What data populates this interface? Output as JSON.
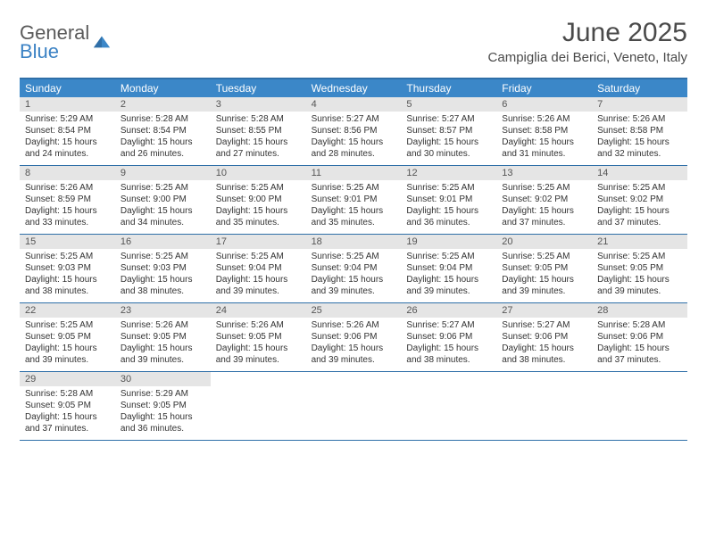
{
  "logo": {
    "general": "General",
    "blue": "Blue"
  },
  "title": "June 2025",
  "location": "Campiglia dei Berici, Veneto, Italy",
  "colors": {
    "header_bar": "#3b87c8",
    "border": "#2f6fa8",
    "date_bg": "#e5e5e5",
    "logo_gray": "#5a5a5a",
    "logo_blue": "#3b82c4"
  },
  "day_names": [
    "Sunday",
    "Monday",
    "Tuesday",
    "Wednesday",
    "Thursday",
    "Friday",
    "Saturday"
  ],
  "weeks": [
    [
      {
        "d": "1",
        "sr": "Sunrise: 5:29 AM",
        "ss": "Sunset: 8:54 PM",
        "dl1": "Daylight: 15 hours",
        "dl2": "and 24 minutes."
      },
      {
        "d": "2",
        "sr": "Sunrise: 5:28 AM",
        "ss": "Sunset: 8:54 PM",
        "dl1": "Daylight: 15 hours",
        "dl2": "and 26 minutes."
      },
      {
        "d": "3",
        "sr": "Sunrise: 5:28 AM",
        "ss": "Sunset: 8:55 PM",
        "dl1": "Daylight: 15 hours",
        "dl2": "and 27 minutes."
      },
      {
        "d": "4",
        "sr": "Sunrise: 5:27 AM",
        "ss": "Sunset: 8:56 PM",
        "dl1": "Daylight: 15 hours",
        "dl2": "and 28 minutes."
      },
      {
        "d": "5",
        "sr": "Sunrise: 5:27 AM",
        "ss": "Sunset: 8:57 PM",
        "dl1": "Daylight: 15 hours",
        "dl2": "and 30 minutes."
      },
      {
        "d": "6",
        "sr": "Sunrise: 5:26 AM",
        "ss": "Sunset: 8:58 PM",
        "dl1": "Daylight: 15 hours",
        "dl2": "and 31 minutes."
      },
      {
        "d": "7",
        "sr": "Sunrise: 5:26 AM",
        "ss": "Sunset: 8:58 PM",
        "dl1": "Daylight: 15 hours",
        "dl2": "and 32 minutes."
      }
    ],
    [
      {
        "d": "8",
        "sr": "Sunrise: 5:26 AM",
        "ss": "Sunset: 8:59 PM",
        "dl1": "Daylight: 15 hours",
        "dl2": "and 33 minutes."
      },
      {
        "d": "9",
        "sr": "Sunrise: 5:25 AM",
        "ss": "Sunset: 9:00 PM",
        "dl1": "Daylight: 15 hours",
        "dl2": "and 34 minutes."
      },
      {
        "d": "10",
        "sr": "Sunrise: 5:25 AM",
        "ss": "Sunset: 9:00 PM",
        "dl1": "Daylight: 15 hours",
        "dl2": "and 35 minutes."
      },
      {
        "d": "11",
        "sr": "Sunrise: 5:25 AM",
        "ss": "Sunset: 9:01 PM",
        "dl1": "Daylight: 15 hours",
        "dl2": "and 35 minutes."
      },
      {
        "d": "12",
        "sr": "Sunrise: 5:25 AM",
        "ss": "Sunset: 9:01 PM",
        "dl1": "Daylight: 15 hours",
        "dl2": "and 36 minutes."
      },
      {
        "d": "13",
        "sr": "Sunrise: 5:25 AM",
        "ss": "Sunset: 9:02 PM",
        "dl1": "Daylight: 15 hours",
        "dl2": "and 37 minutes."
      },
      {
        "d": "14",
        "sr": "Sunrise: 5:25 AM",
        "ss": "Sunset: 9:02 PM",
        "dl1": "Daylight: 15 hours",
        "dl2": "and 37 minutes."
      }
    ],
    [
      {
        "d": "15",
        "sr": "Sunrise: 5:25 AM",
        "ss": "Sunset: 9:03 PM",
        "dl1": "Daylight: 15 hours",
        "dl2": "and 38 minutes."
      },
      {
        "d": "16",
        "sr": "Sunrise: 5:25 AM",
        "ss": "Sunset: 9:03 PM",
        "dl1": "Daylight: 15 hours",
        "dl2": "and 38 minutes."
      },
      {
        "d": "17",
        "sr": "Sunrise: 5:25 AM",
        "ss": "Sunset: 9:04 PM",
        "dl1": "Daylight: 15 hours",
        "dl2": "and 39 minutes."
      },
      {
        "d": "18",
        "sr": "Sunrise: 5:25 AM",
        "ss": "Sunset: 9:04 PM",
        "dl1": "Daylight: 15 hours",
        "dl2": "and 39 minutes."
      },
      {
        "d": "19",
        "sr": "Sunrise: 5:25 AM",
        "ss": "Sunset: 9:04 PM",
        "dl1": "Daylight: 15 hours",
        "dl2": "and 39 minutes."
      },
      {
        "d": "20",
        "sr": "Sunrise: 5:25 AM",
        "ss": "Sunset: 9:05 PM",
        "dl1": "Daylight: 15 hours",
        "dl2": "and 39 minutes."
      },
      {
        "d": "21",
        "sr": "Sunrise: 5:25 AM",
        "ss": "Sunset: 9:05 PM",
        "dl1": "Daylight: 15 hours",
        "dl2": "and 39 minutes."
      }
    ],
    [
      {
        "d": "22",
        "sr": "Sunrise: 5:25 AM",
        "ss": "Sunset: 9:05 PM",
        "dl1": "Daylight: 15 hours",
        "dl2": "and 39 minutes."
      },
      {
        "d": "23",
        "sr": "Sunrise: 5:26 AM",
        "ss": "Sunset: 9:05 PM",
        "dl1": "Daylight: 15 hours",
        "dl2": "and 39 minutes."
      },
      {
        "d": "24",
        "sr": "Sunrise: 5:26 AM",
        "ss": "Sunset: 9:05 PM",
        "dl1": "Daylight: 15 hours",
        "dl2": "and 39 minutes."
      },
      {
        "d": "25",
        "sr": "Sunrise: 5:26 AM",
        "ss": "Sunset: 9:06 PM",
        "dl1": "Daylight: 15 hours",
        "dl2": "and 39 minutes."
      },
      {
        "d": "26",
        "sr": "Sunrise: 5:27 AM",
        "ss": "Sunset: 9:06 PM",
        "dl1": "Daylight: 15 hours",
        "dl2": "and 38 minutes."
      },
      {
        "d": "27",
        "sr": "Sunrise: 5:27 AM",
        "ss": "Sunset: 9:06 PM",
        "dl1": "Daylight: 15 hours",
        "dl2": "and 38 minutes."
      },
      {
        "d": "28",
        "sr": "Sunrise: 5:28 AM",
        "ss": "Sunset: 9:06 PM",
        "dl1": "Daylight: 15 hours",
        "dl2": "and 37 minutes."
      }
    ],
    [
      {
        "d": "29",
        "sr": "Sunrise: 5:28 AM",
        "ss": "Sunset: 9:05 PM",
        "dl1": "Daylight: 15 hours",
        "dl2": "and 37 minutes."
      },
      {
        "d": "30",
        "sr": "Sunrise: 5:29 AM",
        "ss": "Sunset: 9:05 PM",
        "dl1": "Daylight: 15 hours",
        "dl2": "and 36 minutes."
      },
      null,
      null,
      null,
      null,
      null
    ]
  ]
}
